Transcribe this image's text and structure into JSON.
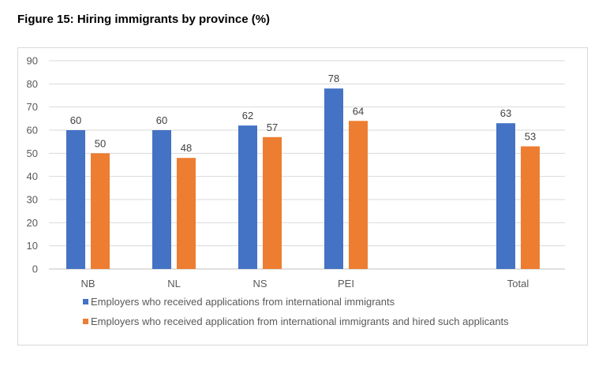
{
  "chart_data": {
    "type": "bar",
    "title": "Figure 15: Hiring immigrants by province (%)",
    "categories": [
      "NB",
      "NL",
      "NS",
      "PEI",
      "",
      "Total"
    ],
    "series": [
      {
        "name": "Employers who received applications from international immigrants",
        "color": "#4472C4",
        "values": [
          60,
          60,
          62,
          78,
          null,
          63
        ]
      },
      {
        "name": "Employers who received application from international immigrants and hired such applicants",
        "color": "#ED7D31",
        "values": [
          50,
          48,
          57,
          64,
          null,
          53
        ]
      }
    ],
    "ylim": [
      0,
      90
    ],
    "yticks": [
      0,
      10,
      20,
      30,
      40,
      50,
      60,
      70,
      80,
      90
    ],
    "xlabel": "",
    "ylabel": "",
    "grid": true,
    "legend": "bottom"
  }
}
